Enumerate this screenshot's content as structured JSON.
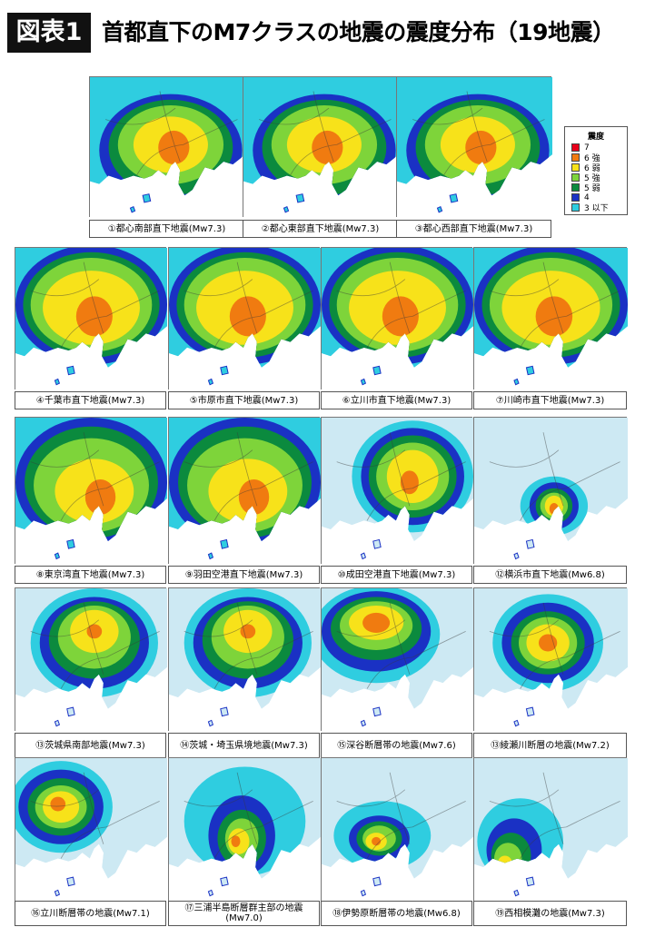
{
  "header": {
    "badge": "図表1",
    "title": "首都直下のM7クラスの地震の震度分布（19地震）"
  },
  "chart_data": {
    "type": "map-grid",
    "title": "首都直下のM7クラスの地震の震度分布（19地震）",
    "legend": {
      "title": "震度",
      "placement": "right of first row",
      "entries": [
        {
          "level": "7",
          "label": "7",
          "color": "#e8001a"
        },
        {
          "level": "6+",
          "label": "6 強",
          "color": "#f07b10"
        },
        {
          "level": "6-",
          "label": "6 弱",
          "color": "#f7e21a"
        },
        {
          "level": "5+",
          "label": "5 強",
          "color": "#7ed43a"
        },
        {
          "level": "5-",
          "label": "5 弱",
          "color": "#0b8a3e"
        },
        {
          "level": "4",
          "label": "4",
          "color": "#1a31c4"
        },
        {
          "level": "3-",
          "label": "3 以下",
          "color": "#2fcde0"
        }
      ]
    },
    "colors": {
      "sea": "#ffffff",
      "land_low": "#cde9f3",
      "land_3": "#2fcde0",
      "land_4": "#1a31c4",
      "land_5minus": "#0b8a3e",
      "land_5plus": "#7ed43a",
      "land_6minus": "#f7e21a",
      "land_6plus": "#f07b10",
      "land_7": "#e8001a"
    },
    "maps": [
      {
        "caption": "①都心南部直下地震(Mw7.3)",
        "pattern": "central",
        "peak": "6+"
      },
      {
        "caption": "②都心東部直下地震(Mw7.3)",
        "pattern": "central",
        "peak": "6+"
      },
      {
        "caption": "③都心西部直下地震(Mw7.3)",
        "pattern": "central",
        "peak": "6+"
      },
      {
        "caption": "④千葉市直下地震(Mw7.3)",
        "pattern": "wide",
        "peak": "6+"
      },
      {
        "caption": "⑤市原市直下地震(Mw7.3)",
        "pattern": "wide",
        "peak": "6+"
      },
      {
        "caption": "⑥立川市直下地震(Mw7.3)",
        "pattern": "wide",
        "peak": "6+"
      },
      {
        "caption": "⑦川崎市直下地震(Mw7.3)",
        "pattern": "wide",
        "peak": "6+"
      },
      {
        "caption": "⑧東京湾直下地震(Mw7.3)",
        "pattern": "bay",
        "peak": "6+"
      },
      {
        "caption": "⑨羽田空港直下地震(Mw7.3)",
        "pattern": "bay",
        "peak": "6+"
      },
      {
        "caption": "⑩成田空港直下地震(Mw7.3)",
        "pattern": "east",
        "peak": "6+"
      },
      {
        "caption": "⑫横浜市直下地震(Mw6.8)",
        "pattern": "small",
        "peak": "6+"
      },
      {
        "caption": "⑬茨城県南部地震(Mw7.3)",
        "pattern": "north",
        "peak": "6+"
      },
      {
        "caption": "⑭茨城・埼玉県境地震(Mw7.3)",
        "pattern": "north",
        "peak": "6+"
      },
      {
        "caption": "⑮深谷断層帯の地震(Mw7.6)",
        "pattern": "northwest",
        "peak": "6+"
      },
      {
        "caption": "⑬綾瀬川断層の地震(Mw7.2)",
        "pattern": "inland",
        "peak": "6+"
      },
      {
        "caption": "⑯立川断層帯の地震(Mw7.1)",
        "pattern": "west",
        "peak": "6+"
      },
      {
        "caption": "⑰三浦半島断層群主部の地震(Mw7.0)",
        "pattern": "miura",
        "peak": "6+"
      },
      {
        "caption": "⑱伊勢原断層帯の地震(Mw6.8)",
        "pattern": "isehara",
        "peak": "6+"
      },
      {
        "caption": "⑲西相模灘の地震(Mw7.3)",
        "pattern": "sagami",
        "peak": "6+"
      }
    ]
  }
}
